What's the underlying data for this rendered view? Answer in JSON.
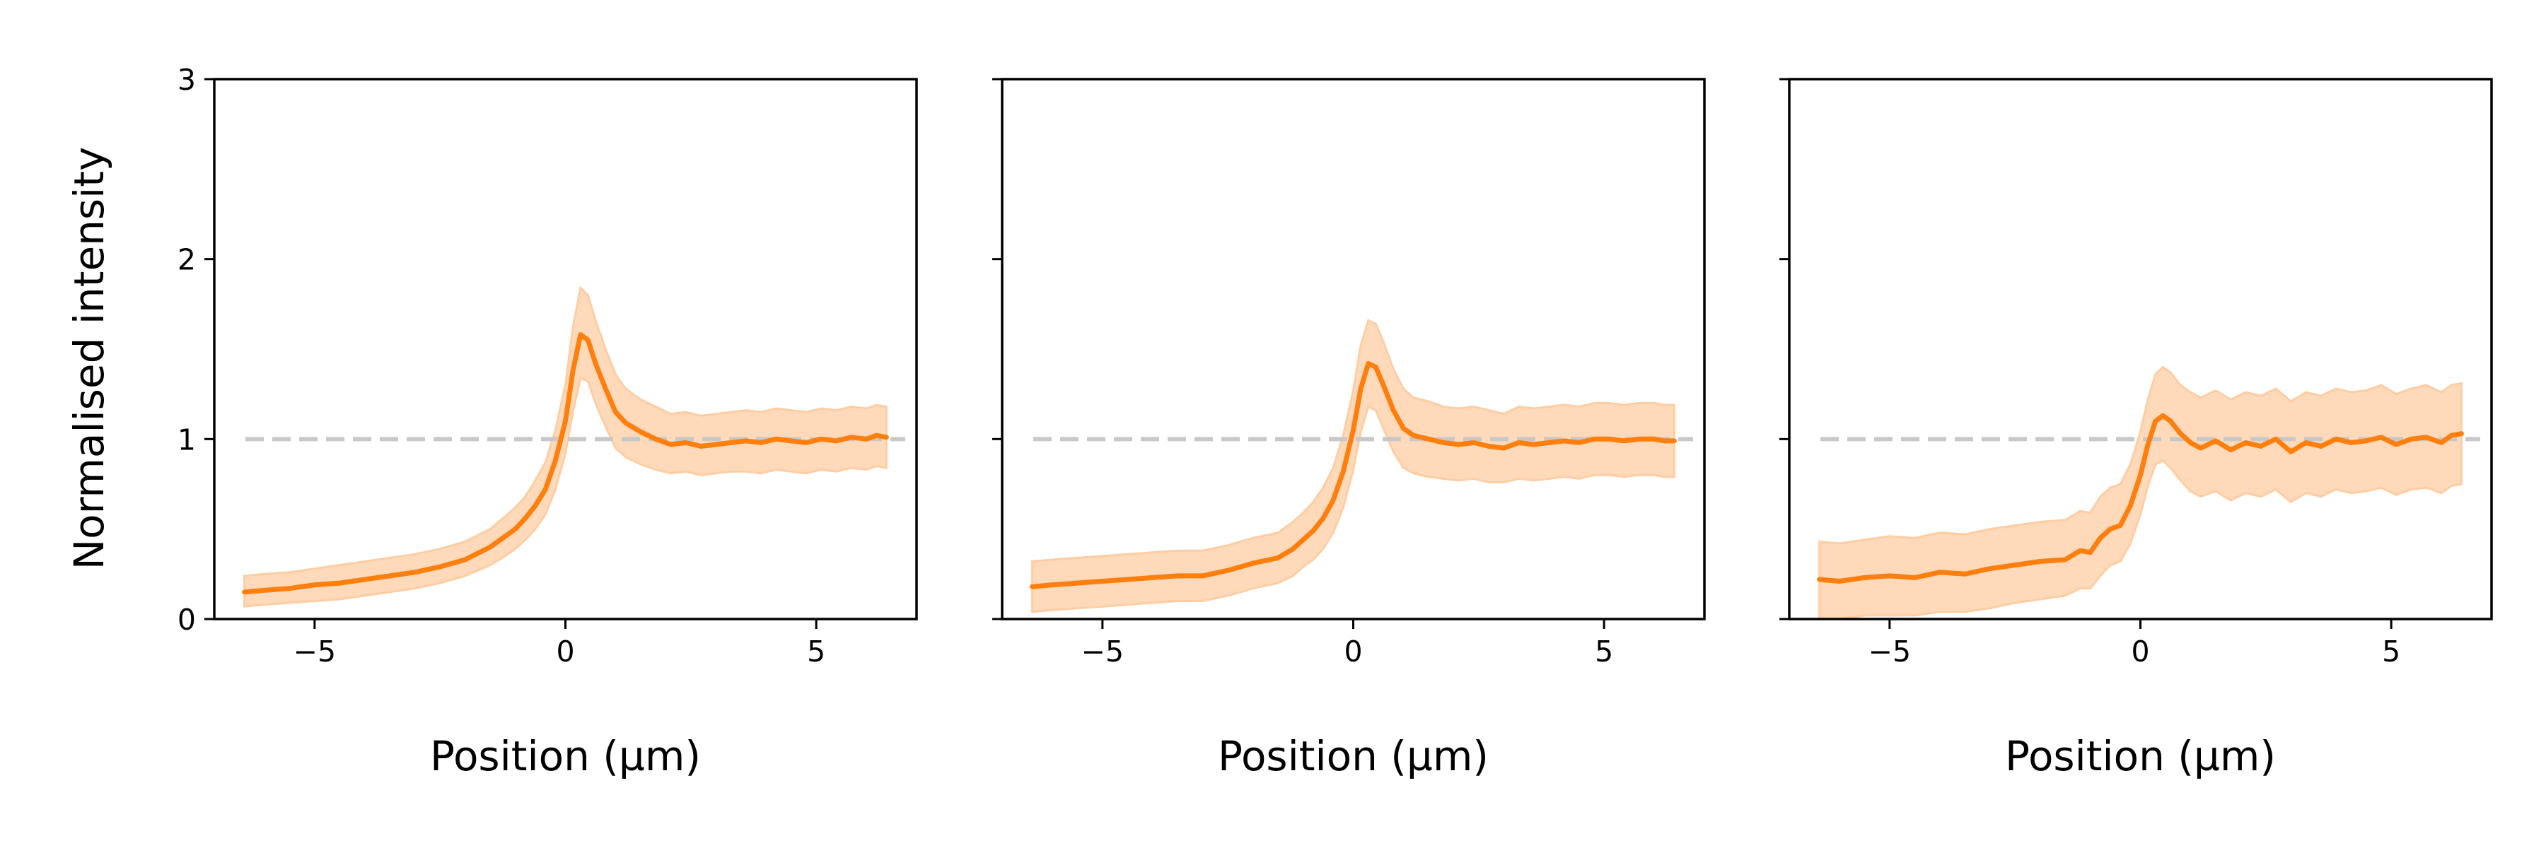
{
  "figure": {
    "colors": {
      "line": "#ff7f0e",
      "band": "#ffcda3",
      "reference_line": "#c8c8c8",
      "axes": "#000000",
      "background": "#ffffff"
    }
  },
  "chart_data": [
    {
      "type": "line",
      "title": "",
      "xlabel": "Position (µm)",
      "ylabel": "Normalised intensity",
      "xlim": [
        -7,
        7
      ],
      "ylim": [
        0,
        3
      ],
      "xticks": [
        -5,
        0,
        5
      ],
      "xtick_labels": [
        "−5",
        "0",
        "5"
      ],
      "yticks": [
        0,
        1,
        2,
        3
      ],
      "ytick_labels": [
        "0",
        "1",
        "2",
        "3"
      ],
      "grid": false,
      "legend": "none",
      "reference_line": {
        "y": 1,
        "style": "dashed"
      },
      "series": [
        {
          "x": [
            -6.4,
            -6.0,
            -5.5,
            -5.0,
            -4.5,
            -4.0,
            -3.5,
            -3.0,
            -2.5,
            -2.0,
            -1.5,
            -1.2,
            -1.0,
            -0.8,
            -0.6,
            -0.4,
            -0.2,
            0.0,
            0.15,
            0.3,
            0.45,
            0.6,
            0.8,
            1.0,
            1.2,
            1.5,
            1.8,
            2.1,
            2.4,
            2.7,
            3.0,
            3.3,
            3.6,
            3.9,
            4.2,
            4.5,
            4.8,
            5.1,
            5.4,
            5.7,
            6.0,
            6.2,
            6.4
          ],
          "y": [
            0.15,
            0.16,
            0.17,
            0.19,
            0.2,
            0.22,
            0.24,
            0.26,
            0.29,
            0.33,
            0.4,
            0.46,
            0.5,
            0.56,
            0.63,
            0.72,
            0.88,
            1.1,
            1.38,
            1.58,
            1.55,
            1.42,
            1.28,
            1.15,
            1.09,
            1.04,
            1.0,
            0.97,
            0.98,
            0.96,
            0.97,
            0.98,
            0.99,
            0.98,
            1.0,
            0.99,
            0.98,
            1.0,
            0.99,
            1.01,
            1.0,
            1.02,
            1.01
          ],
          "band_low": [
            0.07,
            0.08,
            0.09,
            0.1,
            0.11,
            0.13,
            0.15,
            0.17,
            0.2,
            0.24,
            0.3,
            0.35,
            0.39,
            0.44,
            0.5,
            0.58,
            0.72,
            0.92,
            1.15,
            1.34,
            1.32,
            1.2,
            1.07,
            0.95,
            0.9,
            0.86,
            0.83,
            0.81,
            0.82,
            0.8,
            0.81,
            0.82,
            0.82,
            0.81,
            0.83,
            0.82,
            0.81,
            0.83,
            0.82,
            0.84,
            0.83,
            0.85,
            0.84
          ],
          "band_high": [
            0.24,
            0.25,
            0.26,
            0.28,
            0.3,
            0.32,
            0.34,
            0.36,
            0.39,
            0.43,
            0.5,
            0.57,
            0.62,
            0.68,
            0.77,
            0.87,
            1.05,
            1.3,
            1.62,
            1.84,
            1.8,
            1.66,
            1.5,
            1.36,
            1.28,
            1.22,
            1.18,
            1.14,
            1.15,
            1.13,
            1.14,
            1.15,
            1.16,
            1.15,
            1.17,
            1.16,
            1.15,
            1.17,
            1.16,
            1.18,
            1.17,
            1.19,
            1.18
          ]
        }
      ]
    },
    {
      "type": "line",
      "title": "",
      "xlabel": "Position (µm)",
      "ylabel": "",
      "xlim": [
        -7,
        7
      ],
      "ylim": [
        0,
        3
      ],
      "xticks": [
        -5,
        0,
        5
      ],
      "xtick_labels": [
        "−5",
        "0",
        "5"
      ],
      "yticks": [
        0,
        1,
        2,
        3
      ],
      "ytick_labels": [],
      "grid": false,
      "legend": "none",
      "reference_line": {
        "y": 1,
        "style": "dashed"
      },
      "series": [
        {
          "x": [
            -6.4,
            -6.0,
            -5.5,
            -5.0,
            -4.5,
            -4.0,
            -3.5,
            -3.0,
            -2.5,
            -2.0,
            -1.5,
            -1.2,
            -1.0,
            -0.8,
            -0.6,
            -0.4,
            -0.2,
            0.0,
            0.15,
            0.3,
            0.45,
            0.6,
            0.8,
            1.0,
            1.2,
            1.5,
            1.8,
            2.1,
            2.4,
            2.7,
            3.0,
            3.3,
            3.6,
            3.9,
            4.2,
            4.5,
            4.8,
            5.1,
            5.4,
            5.7,
            6.0,
            6.2,
            6.4
          ],
          "y": [
            0.18,
            0.19,
            0.2,
            0.21,
            0.22,
            0.23,
            0.24,
            0.24,
            0.27,
            0.31,
            0.34,
            0.39,
            0.44,
            0.49,
            0.56,
            0.66,
            0.82,
            1.05,
            1.28,
            1.42,
            1.4,
            1.3,
            1.16,
            1.06,
            1.02,
            1.0,
            0.98,
            0.97,
            0.98,
            0.96,
            0.95,
            0.98,
            0.97,
            0.98,
            0.99,
            0.98,
            1.0,
            1.0,
            0.99,
            1.0,
            1.0,
            0.99,
            0.99
          ],
          "band_low": [
            0.04,
            0.05,
            0.06,
            0.07,
            0.08,
            0.09,
            0.1,
            0.1,
            0.13,
            0.17,
            0.2,
            0.24,
            0.29,
            0.33,
            0.39,
            0.48,
            0.62,
            0.83,
            1.04,
            1.18,
            1.16,
            1.06,
            0.93,
            0.84,
            0.81,
            0.79,
            0.78,
            0.77,
            0.78,
            0.76,
            0.76,
            0.78,
            0.77,
            0.78,
            0.79,
            0.78,
            0.8,
            0.8,
            0.79,
            0.8,
            0.8,
            0.79,
            0.79
          ],
          "band_high": [
            0.32,
            0.33,
            0.34,
            0.35,
            0.36,
            0.37,
            0.38,
            0.38,
            0.41,
            0.45,
            0.48,
            0.54,
            0.59,
            0.65,
            0.73,
            0.84,
            1.02,
            1.27,
            1.52,
            1.66,
            1.64,
            1.54,
            1.39,
            1.28,
            1.23,
            1.21,
            1.18,
            1.17,
            1.18,
            1.16,
            1.14,
            1.18,
            1.17,
            1.18,
            1.19,
            1.18,
            1.2,
            1.2,
            1.19,
            1.2,
            1.2,
            1.19,
            1.19
          ]
        }
      ]
    },
    {
      "type": "line",
      "title": "",
      "xlabel": "Position (µm)",
      "ylabel": "",
      "xlim": [
        -7,
        7
      ],
      "ylim": [
        0,
        3
      ],
      "xticks": [
        -5,
        0,
        5
      ],
      "xtick_labels": [
        "−5",
        "0",
        "5"
      ],
      "yticks": [
        0,
        1,
        2,
        3
      ],
      "ytick_labels": [],
      "grid": false,
      "legend": "none",
      "reference_line": {
        "y": 1,
        "style": "dashed"
      },
      "series": [
        {
          "x": [
            -6.4,
            -6.0,
            -5.5,
            -5.0,
            -4.5,
            -4.0,
            -3.5,
            -3.0,
            -2.5,
            -2.0,
            -1.5,
            -1.2,
            -1.0,
            -0.8,
            -0.6,
            -0.4,
            -0.2,
            0.0,
            0.15,
            0.3,
            0.45,
            0.6,
            0.8,
            1.0,
            1.2,
            1.5,
            1.8,
            2.1,
            2.4,
            2.7,
            3.0,
            3.3,
            3.6,
            3.9,
            4.2,
            4.5,
            4.8,
            5.1,
            5.4,
            5.7,
            6.0,
            6.2,
            6.4
          ],
          "y": [
            0.22,
            0.21,
            0.23,
            0.24,
            0.23,
            0.26,
            0.25,
            0.28,
            0.3,
            0.32,
            0.33,
            0.38,
            0.37,
            0.45,
            0.5,
            0.52,
            0.63,
            0.8,
            0.97,
            1.1,
            1.13,
            1.1,
            1.03,
            0.98,
            0.95,
            0.99,
            0.94,
            0.98,
            0.96,
            1.0,
            0.93,
            0.98,
            0.96,
            1.0,
            0.98,
            0.99,
            1.01,
            0.97,
            1.0,
            1.01,
            0.98,
            1.02,
            1.03
          ],
          "band_low": [
            0.0,
            0.0,
            0.02,
            0.02,
            0.02,
            0.04,
            0.04,
            0.06,
            0.09,
            0.11,
            0.13,
            0.17,
            0.17,
            0.24,
            0.3,
            0.32,
            0.42,
            0.58,
            0.74,
            0.86,
            0.88,
            0.84,
            0.77,
            0.71,
            0.68,
            0.71,
            0.66,
            0.7,
            0.68,
            0.72,
            0.65,
            0.7,
            0.68,
            0.72,
            0.7,
            0.71,
            0.73,
            0.69,
            0.72,
            0.73,
            0.7,
            0.74,
            0.75
          ],
          "band_high": [
            0.43,
            0.42,
            0.44,
            0.46,
            0.45,
            0.48,
            0.47,
            0.5,
            0.52,
            0.54,
            0.55,
            0.6,
            0.59,
            0.68,
            0.73,
            0.75,
            0.86,
            1.04,
            1.22,
            1.36,
            1.4,
            1.37,
            1.3,
            1.26,
            1.23,
            1.27,
            1.22,
            1.26,
            1.24,
            1.28,
            1.21,
            1.26,
            1.24,
            1.28,
            1.26,
            1.27,
            1.3,
            1.25,
            1.28,
            1.3,
            1.26,
            1.3,
            1.31
          ]
        }
      ]
    }
  ]
}
